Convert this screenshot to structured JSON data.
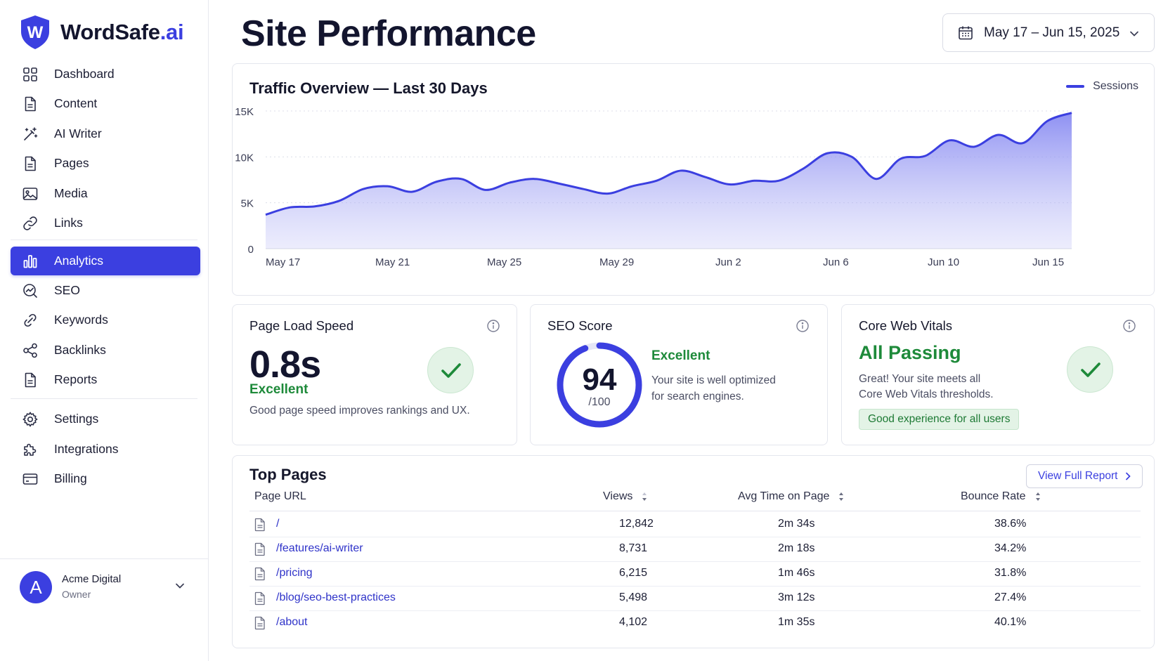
{
  "brand": {
    "name": "WordSafe",
    "suffix": ".ai",
    "logo_letter": "W"
  },
  "sidebar": {
    "items": [
      {
        "label": "Dashboard",
        "icon": "grid-icon"
      },
      {
        "label": "Content",
        "icon": "document-icon"
      },
      {
        "label": "AI Writer",
        "icon": "magic-wand-icon"
      },
      {
        "label": "Pages",
        "icon": "document-icon"
      },
      {
        "label": "Media",
        "icon": "image-icon"
      },
      {
        "label": "Links",
        "icon": "link-icon"
      },
      {
        "label": "Analytics",
        "icon": "bar-chart-icon",
        "active": true
      },
      {
        "label": "SEO",
        "icon": "seo-chart-icon"
      },
      {
        "label": "Keywords",
        "icon": "keyword-link-icon"
      },
      {
        "label": "Backlinks",
        "icon": "share-nodes-icon"
      },
      {
        "label": "Reports",
        "icon": "document-icon"
      },
      {
        "label": "Settings",
        "icon": "gear-icon"
      },
      {
        "label": "Integrations",
        "icon": "puzzle-icon"
      },
      {
        "label": "Billing",
        "icon": "credit-card-icon"
      }
    ]
  },
  "user": {
    "initial": "A",
    "name": "Acme Digital",
    "role": "Owner"
  },
  "header": {
    "title": "Site Performance",
    "date_range": "May 17 – Jun 15, 2025"
  },
  "traffic": {
    "title": "Traffic Overview — Last 30 Days",
    "legend": "Sessions"
  },
  "chart_data": {
    "type": "area",
    "title": "Traffic Overview — Last 30 Days",
    "series": [
      {
        "name": "Sessions",
        "color": "#3b3fe0",
        "values": [
          3700,
          4500,
          4600,
          5200,
          6500,
          6800,
          6200,
          7300,
          7600,
          6400,
          7200,
          7600,
          7100,
          6500,
          6000,
          6800,
          7400,
          8500,
          7800,
          7000,
          7400,
          7400,
          8700,
          10400,
          10000,
          7600,
          9800,
          10100,
          11800,
          11100,
          12400,
          11500,
          13900,
          14800
        ]
      }
    ],
    "x_tick_labels": [
      "May 17",
      "May 21",
      "May 25",
      "May 29",
      "Jun 2",
      "Jun 6",
      "Jun 10",
      "Jun 15"
    ],
    "y_ticks": [
      0,
      5000,
      10000,
      15000
    ],
    "y_tick_labels": [
      "0",
      "5K",
      "10K",
      "15K"
    ],
    "ylim": [
      0,
      15000
    ],
    "grid": true,
    "legend_position": "top-right"
  },
  "metrics": {
    "page_load": {
      "title": "Page Load Speed",
      "value": "0.8s",
      "status": "Excellent",
      "note": "Good page speed improves rankings and UX."
    },
    "seo": {
      "title": "SEO Score",
      "value": "94",
      "denominator": "/100",
      "score_fraction": 0.94,
      "status": "Excellent",
      "note_line1": "Your site is well optimized",
      "note_line2": "for search engines."
    },
    "cwv": {
      "title": "Core Web Vitals",
      "status": "All Passing",
      "note_line1": "Great! Your site meets all",
      "note_line2": "Core Web Vitals thresholds.",
      "badge": "Good experience for all users"
    }
  },
  "top_pages": {
    "title": "Top Pages",
    "view_full_report": "View Full Report",
    "columns": {
      "url": "Page URL",
      "views": "Views",
      "time": "Avg Time on Page",
      "bounce": "Bounce Rate"
    },
    "rows": [
      {
        "url": "/",
        "views": "12,842",
        "time": "2m 34s",
        "bounce": "38.6%"
      },
      {
        "url": "/features/ai-writer",
        "views": "8,731",
        "time": "2m 18s",
        "bounce": "34.2%"
      },
      {
        "url": "/pricing",
        "views": "6,215",
        "time": "1m 46s",
        "bounce": "31.8%"
      },
      {
        "url": "/blog/seo-best-practices",
        "views": "5,498",
        "time": "3m 12s",
        "bounce": "27.4%"
      },
      {
        "url": "/about",
        "views": "4,102",
        "time": "1m 35s",
        "bounce": "40.1%"
      }
    ]
  },
  "colors": {
    "accent": "#3b3fe0",
    "success": "#1e8a3a",
    "success_bg": "#e3f3e6"
  }
}
